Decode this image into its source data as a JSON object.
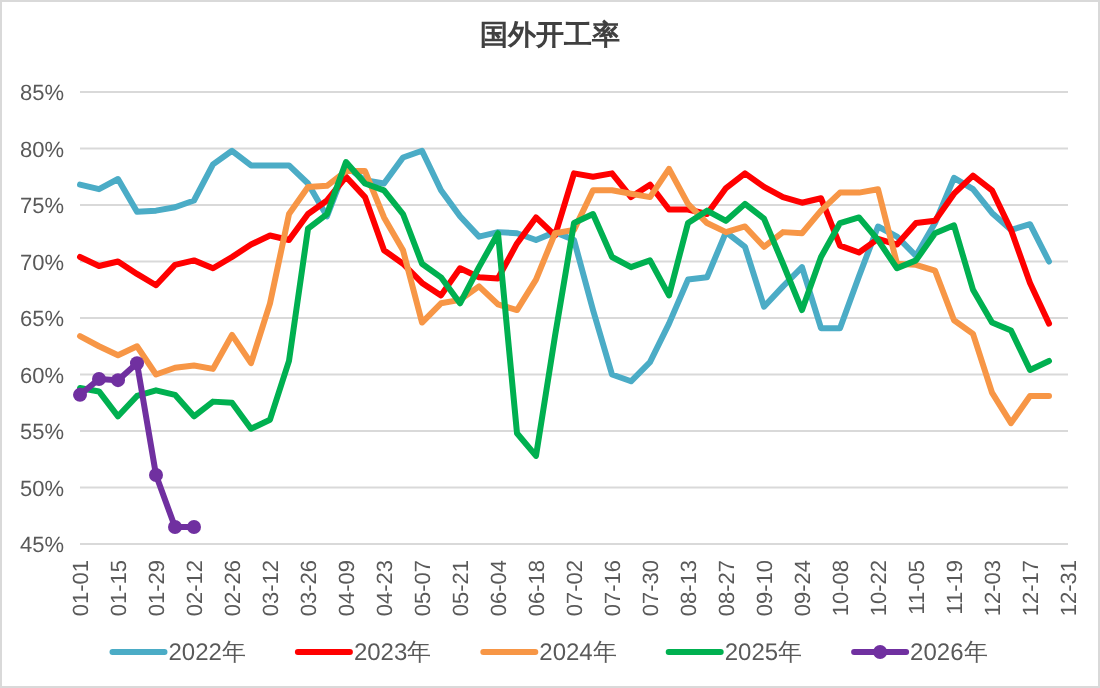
{
  "chart_data": {
    "type": "line",
    "title": "国外开工率",
    "categories": [
      "01-01",
      null,
      "01-15",
      null,
      "01-29",
      null,
      "02-12",
      null,
      "02-26",
      null,
      "03-12",
      null,
      "03-26",
      null,
      "04-09",
      null,
      "04-23",
      null,
      "05-07",
      null,
      "05-21",
      null,
      "06-04",
      null,
      "06-18",
      null,
      "07-02",
      null,
      "07-16",
      null,
      "07-30",
      null,
      "08-13",
      null,
      "08-27",
      null,
      "09-10",
      null,
      "09-24",
      null,
      "10-08",
      null,
      "10-22",
      null,
      "11-05",
      null,
      "11-19",
      null,
      "12-03",
      null,
      "12-17",
      null,
      "12-31"
    ],
    "series": [
      {
        "name": "2022年",
        "color": "#4bacc6",
        "marker": "none",
        "values": [
          76.8,
          76.4,
          77.3,
          74.4,
          74.5,
          74.8,
          75.4,
          78.6,
          79.8,
          78.5,
          78.5,
          78.5,
          76.9,
          74.0,
          78.4,
          77.2,
          76.9,
          79.2,
          79.8,
          76.3,
          74.0,
          72.2,
          72.6,
          72.5,
          71.9,
          72.6,
          71.9,
          65.7,
          60.0,
          59.4,
          61.1,
          64.5,
          68.4,
          68.6,
          72.6,
          71.3,
          66.0,
          67.8,
          69.5,
          64.1,
          64.1,
          68.7,
          73.1,
          72.2,
          70.5,
          73.4,
          77.4,
          76.4,
          74.3,
          72.8,
          73.3,
          70.0,
          null
        ]
      },
      {
        "name": "2023年",
        "color": "#ff0000",
        "marker": "none",
        "values": [
          70.4,
          69.6,
          70.0,
          68.9,
          67.9,
          69.7,
          70.1,
          69.4,
          70.4,
          71.5,
          72.3,
          71.9,
          74.2,
          75.4,
          77.5,
          75.7,
          71.0,
          69.8,
          68.1,
          67.0,
          69.4,
          68.6,
          68.5,
          71.6,
          73.9,
          72.3,
          77.8,
          77.5,
          77.8,
          75.7,
          76.8,
          74.6,
          74.6,
          74.2,
          76.5,
          77.8,
          76.6,
          75.7,
          75.2,
          75.6,
          71.4,
          70.8,
          72.0,
          71.5,
          73.4,
          73.6,
          76.0,
          77.6,
          76.3,
          72.8,
          68.1,
          64.5,
          null
        ]
      },
      {
        "name": "2024年",
        "color": "#f79646",
        "marker": "none",
        "values": [
          63.4,
          62.5,
          61.7,
          62.5,
          60.0,
          60.6,
          60.8,
          60.5,
          63.5,
          61.0,
          66.3,
          74.2,
          76.6,
          76.7,
          78.0,
          78.0,
          73.9,
          71.0,
          64.6,
          66.3,
          66.6,
          67.8,
          66.2,
          65.7,
          68.4,
          72.5,
          72.8,
          76.3,
          76.3,
          76.0,
          75.7,
          78.2,
          75.1,
          73.4,
          72.6,
          73.1,
          71.3,
          72.6,
          72.5,
          74.5,
          76.1,
          76.1,
          76.4,
          69.8,
          69.7,
          69.2,
          64.8,
          63.6,
          58.4,
          55.7,
          58.1,
          58.1,
          null
        ]
      },
      {
        "name": "2025年",
        "color": "#00b050",
        "marker": "none",
        "values": [
          58.8,
          58.5,
          56.3,
          58.1,
          58.6,
          58.2,
          56.3,
          57.6,
          57.5,
          55.2,
          56.0,
          61.2,
          72.9,
          74.2,
          78.8,
          76.9,
          76.3,
          74.2,
          69.8,
          68.6,
          66.3,
          69.5,
          72.5,
          54.8,
          52.8,
          63.4,
          73.4,
          74.2,
          70.4,
          69.5,
          70.1,
          67.0,
          73.4,
          74.5,
          73.6,
          75.1,
          73.8,
          69.8,
          65.7,
          70.4,
          73.4,
          73.9,
          71.9,
          69.4,
          70.1,
          72.5,
          73.2,
          67.5,
          64.6,
          63.9,
          60.4,
          61.2,
          null
        ]
      },
      {
        "name": "2026年",
        "color": "#7030a0",
        "marker": "circle",
        "values": [
          58.2,
          59.6,
          59.5,
          61.0,
          51.1,
          46.5,
          46.5,
          null,
          null,
          null,
          null,
          null,
          null,
          null,
          null,
          null,
          null,
          null,
          null,
          null,
          null,
          null,
          null,
          null,
          null,
          null,
          null,
          null,
          null,
          null,
          null,
          null,
          null,
          null,
          null,
          null,
          null,
          null,
          null,
          null,
          null,
          null,
          null,
          null,
          null,
          null,
          null,
          null,
          null,
          null,
          null,
          null,
          null
        ]
      }
    ],
    "ylim": [
      45,
      85
    ],
    "yticks": [
      {
        "value": 45,
        "label": "45%"
      },
      {
        "value": 50,
        "label": "50%"
      },
      {
        "value": 55,
        "label": "55%"
      },
      {
        "value": 60,
        "label": "60%"
      },
      {
        "value": 65,
        "label": "65%"
      },
      {
        "value": 70,
        "label": "70%"
      },
      {
        "value": 75,
        "label": "75%"
      },
      {
        "value": 80,
        "label": "80%"
      },
      {
        "value": 85,
        "label": "85%"
      }
    ],
    "grid": "y",
    "legend": "bottom"
  }
}
